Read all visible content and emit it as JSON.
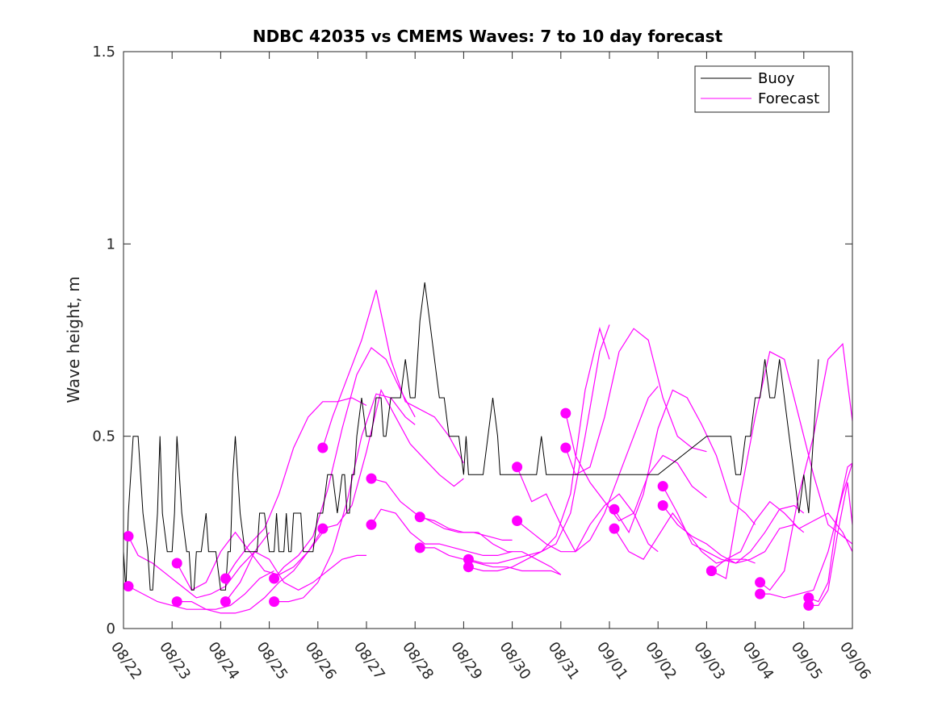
{
  "chart_data": {
    "type": "line",
    "title": "NDBC 42035 vs CMEMS Waves: 7 to 10 day forecast",
    "xlabel": "",
    "ylabel": "Wave height, m",
    "ylim": [
      0,
      1.5
    ],
    "xlim_days": [
      0,
      15
    ],
    "yticks": [
      0,
      0.5,
      1,
      1.5
    ],
    "ytick_labels": [
      "0",
      "0.5",
      "1",
      "1.5"
    ],
    "xtick_labels": [
      "08/22",
      "08/23",
      "08/24",
      "08/25",
      "08/26",
      "08/27",
      "08/28",
      "08/29",
      "08/30",
      "08/31",
      "09/01",
      "09/02",
      "09/03",
      "09/04",
      "09/05",
      "09/06"
    ],
    "grid": false,
    "legend": {
      "placement": "top-right",
      "entries": [
        "Buoy",
        "Forecast"
      ]
    },
    "colors": {
      "buoy": "#000000",
      "forecast": "#ff00ff"
    },
    "buoy": {
      "name": "Buoy",
      "x": [
        0,
        0.05,
        0.1,
        0.15,
        0.2,
        0.3,
        0.35,
        0.4,
        0.5,
        0.55,
        0.6,
        0.65,
        0.7,
        0.75,
        0.8,
        0.9,
        1.0,
        1.05,
        1.1,
        1.15,
        1.2,
        1.3,
        1.35,
        1.4,
        1.45,
        1.5,
        1.55,
        1.6,
        1.7,
        1.75,
        1.8,
        1.85,
        1.9,
        2.0,
        2.05,
        2.1,
        2.15,
        2.2,
        2.25,
        2.3,
        2.35,
        2.4,
        2.5,
        2.55,
        2.6,
        2.7,
        2.75,
        2.8,
        2.9,
        3.0,
        3.05,
        3.1,
        3.15,
        3.2,
        3.3,
        3.35,
        3.4,
        3.45,
        3.5,
        3.55,
        3.6,
        3.65,
        3.7,
        3.8,
        3.9,
        4.0,
        4.1,
        4.2,
        4.3,
        4.4,
        4.5,
        4.55,
        4.6,
        4.65,
        4.7,
        4.75,
        4.8,
        4.9,
        5.0,
        5.1,
        5.2,
        5.3,
        5.35,
        5.4,
        5.5,
        5.6,
        5.7,
        5.8,
        5.9,
        6.0,
        6.05,
        6.1,
        6.2,
        6.3,
        6.4,
        6.5,
        6.6,
        6.7,
        6.8,
        6.9,
        7.0,
        7.05,
        7.1,
        7.2,
        7.3,
        7.4,
        7.5,
        7.6,
        7.7,
        7.75,
        7.8,
        7.85,
        7.9,
        7.95,
        8.0,
        8.1,
        8.2,
        8.3,
        8.4,
        8.5,
        8.6,
        8.7,
        8.8,
        8.9,
        9.0,
        9.1,
        9.2,
        9.3,
        9.4,
        9.5,
        9.6,
        9.7,
        9.8,
        10.0,
        11.0,
        12.0,
        12.5,
        12.6,
        12.7,
        12.8,
        12.9,
        13.0,
        13.1,
        13.2,
        13.3,
        13.4,
        13.5,
        13.6,
        13.7,
        13.8,
        13.9,
        14.0,
        14.1,
        14.2,
        14.3
      ],
      "y": [
        0.2,
        0.1,
        0.3,
        0.4,
        0.5,
        0.5,
        0.4,
        0.3,
        0.2,
        0.1,
        0.1,
        0.2,
        0.3,
        0.5,
        0.3,
        0.2,
        0.2,
        0.3,
        0.5,
        0.4,
        0.3,
        0.2,
        0.2,
        0.1,
        0.1,
        0.2,
        0.2,
        0.2,
        0.3,
        0.2,
        0.2,
        0.2,
        0.2,
        0.1,
        0.1,
        0.1,
        0.2,
        0.2,
        0.4,
        0.5,
        0.4,
        0.3,
        0.2,
        0.2,
        0.2,
        0.2,
        0.2,
        0.3,
        0.3,
        0.2,
        0.2,
        0.2,
        0.3,
        0.2,
        0.2,
        0.3,
        0.2,
        0.2,
        0.3,
        0.3,
        0.3,
        0.3,
        0.2,
        0.2,
        0.2,
        0.3,
        0.3,
        0.4,
        0.4,
        0.3,
        0.4,
        0.4,
        0.3,
        0.3,
        0.4,
        0.4,
        0.5,
        0.6,
        0.5,
        0.5,
        0.6,
        0.6,
        0.5,
        0.5,
        0.6,
        0.6,
        0.6,
        0.7,
        0.6,
        0.6,
        0.7,
        0.8,
        0.9,
        0.8,
        0.7,
        0.6,
        0.6,
        0.5,
        0.5,
        0.5,
        0.4,
        0.5,
        0.4,
        0.4,
        0.4,
        0.4,
        0.5,
        0.6,
        0.5,
        0.4,
        0.4,
        0.4,
        0.4,
        0.4,
        0.4,
        0.4,
        0.4,
        0.4,
        0.4,
        0.4,
        0.5,
        0.4,
        0.4,
        0.4,
        0.4,
        0.4,
        0.4,
        0.4,
        0.4,
        0.4,
        0.4,
        0.4,
        0.4,
        0.4,
        0.4,
        0.5,
        0.5,
        0.4,
        0.4,
        0.5,
        0.5,
        0.6,
        0.6,
        0.7,
        0.6,
        0.6,
        0.7,
        0.6,
        0.5,
        0.4,
        0.3,
        0.4,
        0.3,
        0.5,
        0.7
      ]
    },
    "forecasts": [
      {
        "name": "Forecast",
        "start_day": 0,
        "x": [
          0.1,
          0.3,
          0.6,
          0.9,
          1.2,
          1.5,
          1.8,
          2.1,
          2.4,
          2.7,
          3.0
        ],
        "y": [
          0.24,
          0.19,
          0.17,
          0.14,
          0.11,
          0.08,
          0.09,
          0.11,
          0.16,
          0.2,
          0.25
        ]
      },
      {
        "name": "Forecast",
        "start_day": 0,
        "x": [
          0.1,
          0.4,
          0.7,
          1.0,
          1.3,
          1.6,
          1.9,
          2.2,
          2.5,
          2.8,
          3.1
        ],
        "y": [
          0.11,
          0.09,
          0.07,
          0.06,
          0.05,
          0.05,
          0.05,
          0.06,
          0.09,
          0.13,
          0.15
        ]
      },
      {
        "name": "Forecast",
        "start_day": 1,
        "x": [
          1.1,
          1.4,
          1.7,
          2.0,
          2.3,
          2.6,
          2.9,
          3.2,
          3.5,
          3.8,
          4.1
        ],
        "y": [
          0.17,
          0.1,
          0.12,
          0.2,
          0.25,
          0.2,
          0.15,
          0.14,
          0.16,
          0.2,
          0.25
        ]
      },
      {
        "name": "Forecast",
        "start_day": 1,
        "x": [
          1.1,
          1.4,
          1.7,
          2.0,
          2.3,
          2.6,
          2.9,
          3.2,
          3.5,
          3.8,
          4.1
        ],
        "y": [
          0.07,
          0.07,
          0.05,
          0.04,
          0.04,
          0.05,
          0.08,
          0.12,
          0.15,
          0.2,
          0.26
        ]
      },
      {
        "name": "Forecast",
        "start_day": 2,
        "x": [
          2.1,
          2.3,
          2.6,
          2.9,
          3.2,
          3.5,
          3.8,
          4.1,
          4.4,
          4.7,
          5.0
        ],
        "y": [
          0.13,
          0.17,
          0.22,
          0.26,
          0.35,
          0.47,
          0.55,
          0.59,
          0.59,
          0.6,
          0.58
        ]
      },
      {
        "name": "Forecast",
        "start_day": 2,
        "x": [
          2.1,
          2.4,
          2.7,
          3.0,
          3.3,
          3.6,
          3.9,
          4.2,
          4.5,
          4.8,
          5.0
        ],
        "y": [
          0.07,
          0.12,
          0.2,
          0.18,
          0.12,
          0.1,
          0.12,
          0.15,
          0.18,
          0.19,
          0.19
        ]
      },
      {
        "name": "Forecast",
        "start_day": 3,
        "x": [
          3.1,
          3.3,
          3.6,
          3.9,
          4.2,
          4.5,
          4.8,
          5.1,
          5.4,
          5.7,
          6.0
        ],
        "y": [
          0.13,
          0.16,
          0.19,
          0.24,
          0.36,
          0.52,
          0.66,
          0.73,
          0.7,
          0.62,
          0.55
        ]
      },
      {
        "name": "Forecast",
        "start_day": 3,
        "x": [
          3.1,
          3.4,
          3.7,
          4.0,
          4.3,
          4.6,
          4.9,
          5.2,
          5.5,
          5.8,
          6.0
        ],
        "y": [
          0.07,
          0.07,
          0.08,
          0.12,
          0.2,
          0.33,
          0.5,
          0.61,
          0.6,
          0.55,
          0.53
        ]
      },
      {
        "name": "Forecast",
        "start_day": 4,
        "x": [
          4.1,
          4.3,
          4.6,
          4.9,
          5.2,
          5.5,
          5.8,
          6.1,
          6.4,
          6.7,
          7.0
        ],
        "y": [
          0.47,
          0.55,
          0.65,
          0.75,
          0.88,
          0.7,
          0.59,
          0.57,
          0.55,
          0.5,
          0.43
        ]
      },
      {
        "name": "Forecast",
        "start_day": 4,
        "x": [
          4.1,
          4.4,
          4.7,
          5.0,
          5.3,
          5.6,
          5.9,
          6.2,
          6.5,
          6.8,
          7.0
        ],
        "y": [
          0.26,
          0.27,
          0.32,
          0.46,
          0.62,
          0.55,
          0.48,
          0.44,
          0.4,
          0.37,
          0.39
        ]
      },
      {
        "name": "Forecast",
        "start_day": 5,
        "x": [
          5.1,
          5.4,
          5.7,
          6.0,
          6.3,
          6.6,
          6.9,
          7.2,
          7.5,
          7.8,
          8.0
        ],
        "y": [
          0.39,
          0.38,
          0.33,
          0.3,
          0.28,
          0.26,
          0.25,
          0.25,
          0.24,
          0.23,
          0.23
        ]
      },
      {
        "name": "Forecast",
        "start_day": 5,
        "x": [
          5.1,
          5.3,
          5.6,
          5.9,
          6.2,
          6.5,
          6.8,
          7.1,
          7.4,
          7.7,
          8.0
        ],
        "y": [
          0.27,
          0.31,
          0.3,
          0.25,
          0.22,
          0.22,
          0.21,
          0.2,
          0.19,
          0.19,
          0.2
        ]
      },
      {
        "name": "Forecast",
        "start_day": 6,
        "x": [
          6.1,
          6.4,
          6.7,
          7.0,
          7.3,
          7.6,
          7.9,
          8.2,
          8.5,
          8.8,
          9.0
        ],
        "y": [
          0.29,
          0.28,
          0.26,
          0.25,
          0.25,
          0.22,
          0.2,
          0.2,
          0.18,
          0.16,
          0.14
        ]
      },
      {
        "name": "Forecast",
        "start_day": 6,
        "x": [
          6.1,
          6.4,
          6.7,
          7.0,
          7.3,
          7.6,
          7.9,
          8.2,
          8.5,
          8.8,
          9.0
        ],
        "y": [
          0.21,
          0.21,
          0.19,
          0.18,
          0.17,
          0.16,
          0.16,
          0.15,
          0.15,
          0.15,
          0.14
        ]
      },
      {
        "name": "Forecast",
        "start_day": 7,
        "x": [
          7.1,
          7.4,
          7.7,
          8.0,
          8.3,
          8.6,
          8.9,
          9.2,
          9.5,
          9.8,
          10.0
        ],
        "y": [
          0.18,
          0.17,
          0.17,
          0.18,
          0.19,
          0.2,
          0.24,
          0.35,
          0.62,
          0.78,
          0.7
        ]
      },
      {
        "name": "Forecast",
        "start_day": 7,
        "x": [
          7.1,
          7.4,
          7.7,
          8.0,
          8.3,
          8.6,
          8.9,
          9.2,
          9.5,
          9.8,
          10.0
        ],
        "y": [
          0.16,
          0.15,
          0.15,
          0.16,
          0.18,
          0.2,
          0.22,
          0.3,
          0.5,
          0.72,
          0.79
        ]
      },
      {
        "name": "Forecast",
        "start_day": 8,
        "x": [
          8.1,
          8.4,
          8.7,
          9.0,
          9.3,
          9.6,
          9.9,
          10.2,
          10.5,
          10.8,
          11.0
        ],
        "y": [
          0.42,
          0.33,
          0.35,
          0.27,
          0.2,
          0.23,
          0.3,
          0.4,
          0.5,
          0.6,
          0.63
        ]
      },
      {
        "name": "Forecast",
        "start_day": 8,
        "x": [
          8.1,
          8.4,
          8.7,
          9.0,
          9.3,
          9.6,
          9.9,
          10.2,
          10.5,
          10.8,
          11.0
        ],
        "y": [
          0.28,
          0.25,
          0.22,
          0.2,
          0.2,
          0.27,
          0.32,
          0.35,
          0.3,
          0.22,
          0.2
        ]
      },
      {
        "name": "Forecast",
        "start_day": 9,
        "x": [
          9.1,
          9.3,
          9.6,
          9.9,
          10.2,
          10.5,
          10.8,
          11.1,
          11.4,
          11.7,
          12.0
        ],
        "y": [
          0.56,
          0.45,
          0.38,
          0.33,
          0.28,
          0.3,
          0.4,
          0.45,
          0.43,
          0.37,
          0.34
        ]
      },
      {
        "name": "Forecast",
        "start_day": 9,
        "x": [
          9.1,
          9.3,
          9.6,
          9.9,
          10.2,
          10.5,
          10.8,
          11.1,
          11.4,
          11.7,
          12.0
        ],
        "y": [
          0.47,
          0.4,
          0.42,
          0.55,
          0.72,
          0.78,
          0.75,
          0.6,
          0.5,
          0.47,
          0.46
        ]
      },
      {
        "name": "Forecast",
        "start_day": 10,
        "x": [
          10.1,
          10.4,
          10.7,
          11.0,
          11.3,
          11.6,
          11.9,
          12.2,
          12.5,
          12.8,
          13.0
        ],
        "y": [
          0.31,
          0.25,
          0.35,
          0.52,
          0.62,
          0.6,
          0.53,
          0.45,
          0.33,
          0.3,
          0.27
        ]
      },
      {
        "name": "Forecast",
        "start_day": 10,
        "x": [
          10.1,
          10.4,
          10.7,
          11.0,
          11.3,
          11.6,
          11.9,
          12.2,
          12.5,
          12.8,
          13.0
        ],
        "y": [
          0.26,
          0.2,
          0.18,
          0.24,
          0.3,
          0.25,
          0.2,
          0.17,
          0.18,
          0.18,
          0.17
        ]
      },
      {
        "name": "Forecast",
        "start_day": 11,
        "x": [
          11.1,
          11.4,
          11.7,
          12.0,
          12.3,
          12.6,
          12.9,
          13.2,
          13.5,
          13.8,
          14.0
        ],
        "y": [
          0.37,
          0.3,
          0.22,
          0.2,
          0.18,
          0.17,
          0.2,
          0.25,
          0.31,
          0.32,
          0.3
        ]
      },
      {
        "name": "Forecast",
        "start_day": 11,
        "x": [
          11.1,
          11.4,
          11.7,
          12.0,
          12.3,
          12.6,
          12.9,
          13.2,
          13.5,
          13.8,
          14.0
        ],
        "y": [
          0.32,
          0.27,
          0.24,
          0.22,
          0.19,
          0.17,
          0.18,
          0.2,
          0.26,
          0.27,
          0.25
        ]
      },
      {
        "name": "Forecast",
        "start_day": 12,
        "x": [
          12.1,
          12.4,
          12.7,
          13.0,
          13.3,
          13.6,
          13.9,
          14.2,
          14.5,
          14.8,
          15.0
        ],
        "y": [
          0.15,
          0.13,
          0.35,
          0.55,
          0.72,
          0.7,
          0.55,
          0.4,
          0.27,
          0.24,
          0.22
        ]
      },
      {
        "name": "Forecast",
        "start_day": 12,
        "x": [
          12.1,
          12.4,
          12.7,
          13.0,
          13.3,
          13.6,
          13.9,
          14.2,
          14.5,
          14.8,
          15.0
        ],
        "y": [
          0.15,
          0.18,
          0.2,
          0.28,
          0.33,
          0.3,
          0.26,
          0.28,
          0.3,
          0.25,
          0.2
        ]
      },
      {
        "name": "Forecast",
        "start_day": 13,
        "x": [
          13.1,
          13.3,
          13.6,
          13.9,
          14.2,
          14.5,
          14.8,
          15.0
        ],
        "y": [
          0.12,
          0.1,
          0.15,
          0.35,
          0.5,
          0.7,
          0.74,
          0.54
        ]
      },
      {
        "name": "Forecast",
        "start_day": 13,
        "x": [
          13.1,
          13.3,
          13.6,
          13.9,
          14.2,
          14.5,
          14.8,
          15.0
        ],
        "y": [
          0.09,
          0.09,
          0.08,
          0.09,
          0.1,
          0.2,
          0.35,
          0.43
        ]
      },
      {
        "name": "Forecast",
        "start_day": 14,
        "x": [
          14.1,
          14.3,
          14.5,
          14.7,
          14.9,
          15.0
        ],
        "y": [
          0.08,
          0.07,
          0.12,
          0.3,
          0.42,
          0.43
        ]
      },
      {
        "name": "Forecast",
        "start_day": 14,
        "x": [
          14.1,
          14.3,
          14.5,
          14.7,
          14.9,
          15.0
        ],
        "y": [
          0.06,
          0.06,
          0.1,
          0.25,
          0.38,
          0.27
        ]
      }
    ]
  }
}
